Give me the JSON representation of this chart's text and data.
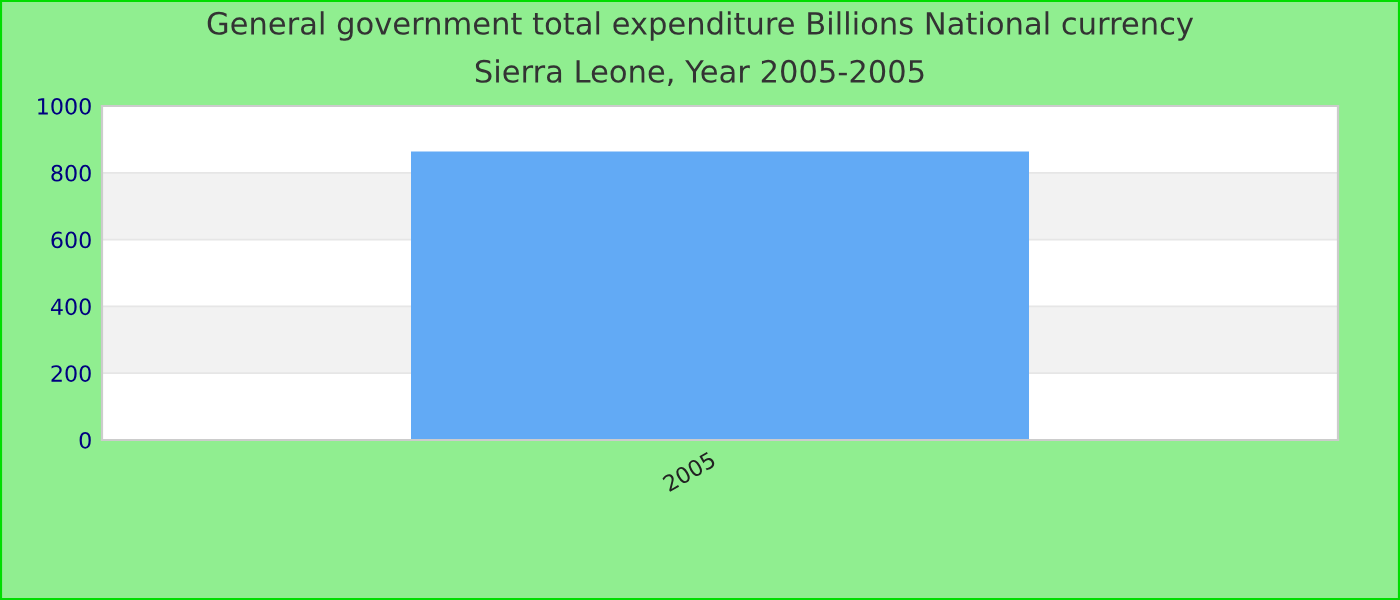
{
  "chart_data": {
    "type": "bar",
    "title": "General government total expenditure Billions National currency",
    "subtitle": "Sierra Leone, Year 2005-2005",
    "categories": [
      "2005"
    ],
    "values": [
      864
    ],
    "color": "#62aaf5",
    "ylim": [
      0,
      1000
    ],
    "yticks": [
      0,
      200,
      400,
      600,
      800,
      1000
    ],
    "grid": "y"
  }
}
